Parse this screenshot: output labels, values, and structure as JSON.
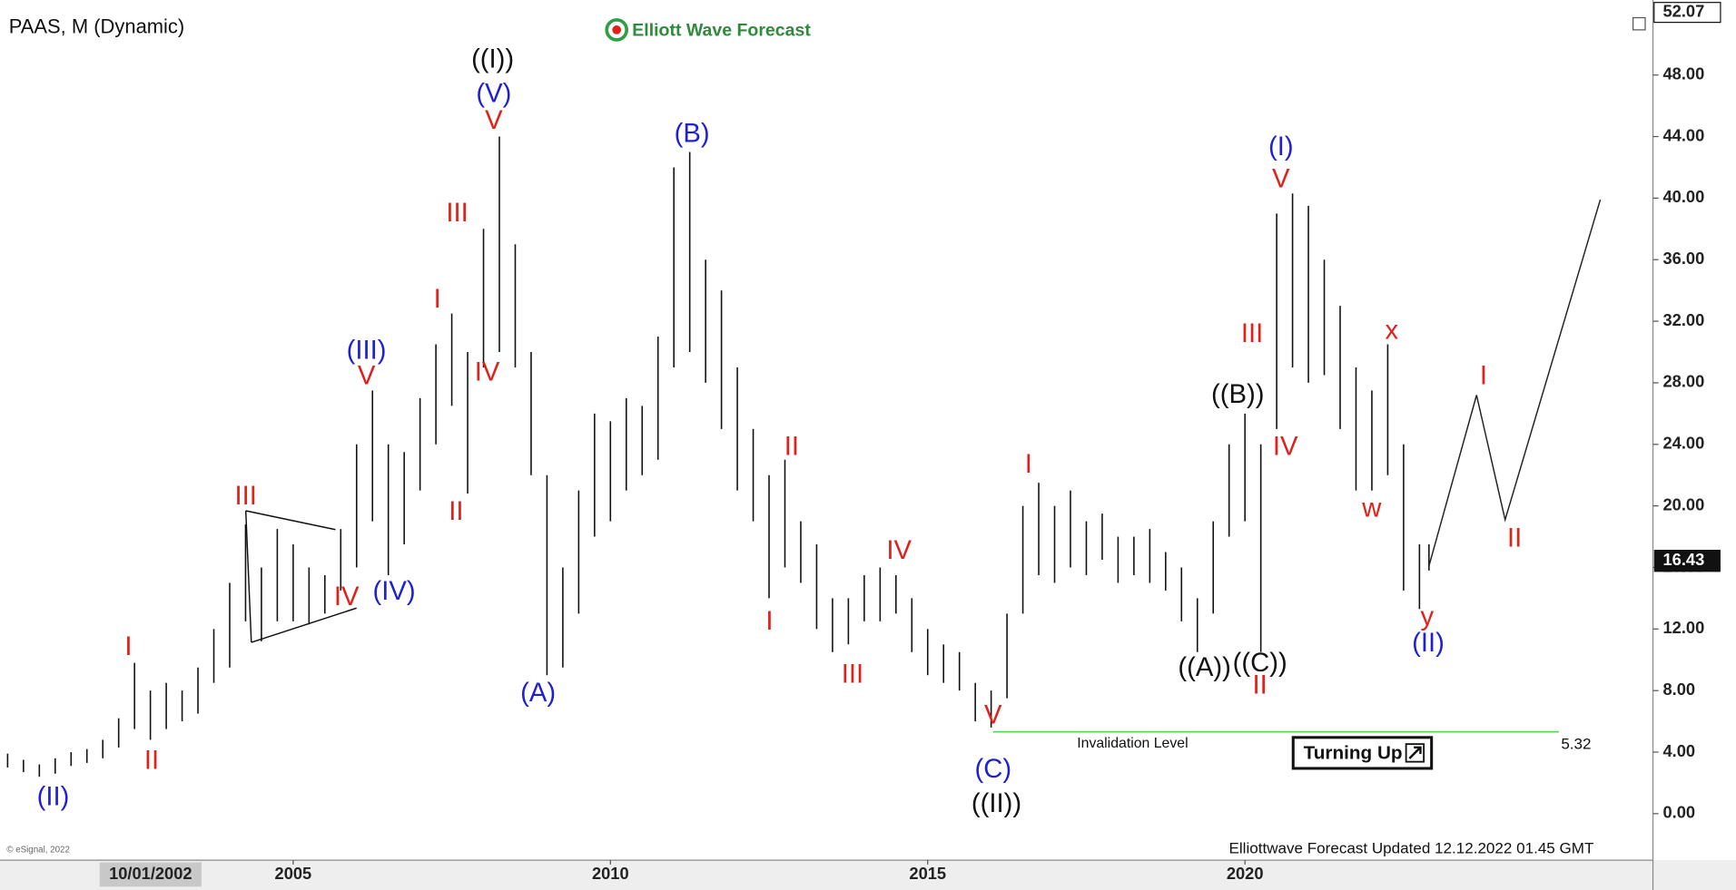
{
  "chart_data": {
    "type": "hilo",
    "title": "PAAS, M (Dynamic)",
    "logo": "Elliott Wave Forecast",
    "footer": "Elliottwave Forecast Updated 12.12.2022 01.45 GMT",
    "copyright": "© eSignal, 2022",
    "start_label": "10/01/2002",
    "badge": "Turning Up",
    "top_price": 52.07,
    "last_price": 16.43,
    "invalidation": {
      "label": "Invalidation Level",
      "value": 5.32
    },
    "color": "#111111",
    "x": [
      2000.5,
      2000.75,
      2001.0,
      2001.25,
      2001.5,
      2001.75,
      2002.0,
      2002.25,
      2002.5,
      2002.75,
      2003.0,
      2003.25,
      2003.5,
      2003.75,
      2004.0,
      2004.25,
      2004.5,
      2004.75,
      2005.0,
      2005.25,
      2005.5,
      2005.75,
      2006.0,
      2006.25,
      2006.5,
      2006.75,
      2007.0,
      2007.25,
      2007.5,
      2007.75,
      2008.0,
      2008.25,
      2008.5,
      2008.75,
      2009.0,
      2009.25,
      2009.5,
      2009.75,
      2010.0,
      2010.25,
      2010.5,
      2010.75,
      2011.0,
      2011.25,
      2011.5,
      2011.75,
      2012.0,
      2012.25,
      2012.5,
      2012.75,
      2013.0,
      2013.25,
      2013.5,
      2013.75,
      2014.0,
      2014.25,
      2014.5,
      2014.75,
      2015.0,
      2015.25,
      2015.5,
      2015.75,
      2016.0,
      2016.25,
      2016.5,
      2016.75,
      2017.0,
      2017.25,
      2017.5,
      2017.75,
      2018.0,
      2018.25,
      2018.5,
      2018.75,
      2019.0,
      2019.25,
      2019.5,
      2019.75,
      2020.0,
      2020.25,
      2020.5,
      2020.75,
      2021.0,
      2021.25,
      2021.5,
      2021.75,
      2022.0,
      2022.25,
      2022.5,
      2022.75,
      2022.9
    ],
    "high": [
      3.9,
      3.5,
      3.2,
      3.6,
      4.0,
      4.2,
      4.8,
      6.2,
      9.8,
      8.0,
      8.5,
      8.0,
      9.5,
      12.0,
      15.0,
      18.8,
      16.0,
      18.5,
      17.5,
      16.0,
      15.5,
      18.5,
      24.0,
      27.5,
      24.0,
      23.5,
      27.0,
      30.5,
      32.5,
      30.0,
      38.0,
      44.0,
      37.0,
      30.0,
      22.0,
      16.0,
      21.0,
      26.0,
      25.5,
      27.0,
      26.5,
      31.0,
      42.0,
      43.0,
      36.0,
      34.0,
      29.0,
      25.0,
      22.0,
      23.0,
      19.0,
      17.5,
      14.0,
      14.0,
      15.5,
      16.0,
      15.5,
      14.0,
      12.0,
      11.0,
      10.5,
      8.5,
      8.0,
      13.0,
      20.0,
      21.5,
      20.0,
      21.0,
      19.0,
      19.5,
      18.0,
      18.0,
      18.5,
      17.0,
      16.0,
      14.0,
      19.0,
      24.0,
      26.0,
      24.0,
      39.0,
      40.3,
      39.5,
      36.0,
      33.0,
      29.0,
      27.5,
      30.5,
      24.0,
      17.5,
      17.5
    ],
    "low": [
      3.0,
      2.7,
      2.4,
      2.6,
      3.1,
      3.3,
      3.6,
      4.3,
      5.5,
      4.8,
      5.5,
      6.0,
      6.5,
      8.5,
      9.5,
      12.5,
      11.2,
      12.5,
      12.5,
      12.3,
      13.0,
      14.5,
      16.0,
      19.0,
      15.5,
      17.5,
      21.0,
      24.0,
      26.5,
      20.8,
      29.0,
      30.0,
      29.0,
      22.0,
      9.0,
      9.5,
      13.0,
      18.0,
      19.0,
      21.0,
      22.0,
      23.0,
      29.0,
      30.0,
      28.0,
      25.0,
      21.0,
      19.0,
      14.0,
      16.0,
      15.0,
      12.0,
      10.5,
      11.0,
      12.5,
      12.5,
      13.0,
      10.5,
      9.0,
      8.5,
      8.0,
      6.0,
      5.6,
      7.5,
      13.0,
      15.5,
      15.0,
      16.0,
      15.5,
      16.5,
      15.0,
      15.5,
      15.0,
      14.5,
      12.5,
      10.5,
      13.0,
      18.0,
      19.0,
      10.5,
      25.0,
      29.0,
      28.0,
      28.5,
      25.0,
      21.0,
      21.0,
      22.0,
      14.5,
      13.3,
      15.8
    ],
    "projection": {
      "x": [
        2022.9,
        2023.65,
        2024.1,
        2025.6
      ],
      "y": [
        16.1,
        27.2,
        19.1,
        39.9
      ]
    },
    "xlim": [
      2000.38,
      2026.43
    ],
    "xticks": [
      2005,
      2010,
      2015,
      2020
    ],
    "ylim": [
      -3.02,
      52.3
    ],
    "yticks": [
      {
        "value": 0,
        "label": "0.00"
      },
      {
        "value": 4,
        "label": "4.00"
      },
      {
        "value": 8,
        "label": "8.00"
      },
      {
        "value": 12,
        "label": "12.00"
      },
      {
        "value": 16,
        "label": "16.00"
      },
      {
        "value": 20,
        "label": "20.00"
      },
      {
        "value": 24,
        "label": "24.00"
      },
      {
        "value": 28,
        "label": "28.00"
      },
      {
        "value": 32,
        "label": "32.00"
      },
      {
        "value": 36,
        "label": "36.00"
      },
      {
        "value": 40,
        "label": "40.00"
      },
      {
        "value": 44,
        "label": "44.00"
      },
      {
        "value": 48,
        "label": "48.00"
      }
    ],
    "annotations": [
      {
        "text": "(II)",
        "color": "#1f1fd6"
      },
      {
        "text": "I",
        "color": "#e0201b"
      },
      {
        "text": "II",
        "color": "#e0201b"
      },
      {
        "text": "III",
        "color": "#e0201b"
      },
      {
        "text": "IV",
        "color": "#e0201b"
      },
      {
        "text": "(III)",
        "color": "#1f1fd6"
      },
      {
        "text": "V",
        "color": "#e0201b"
      },
      {
        "text": "(IV)",
        "color": "#1f1fd6"
      },
      {
        "text": "I",
        "color": "#e0201b"
      },
      {
        "text": "II",
        "color": "#e0201b"
      },
      {
        "text": "III",
        "color": "#e0201b"
      },
      {
        "text": "IV",
        "color": "#e0201b"
      },
      {
        "text": "((I))",
        "color": "#111111"
      },
      {
        "text": "(V)",
        "color": "#1f1fd6"
      },
      {
        "text": "V",
        "color": "#e0201b"
      },
      {
        "text": "(A)",
        "color": "#1f1fd6"
      },
      {
        "text": "(B)",
        "color": "#1f1fd6"
      },
      {
        "text": "I",
        "color": "#e0201b"
      },
      {
        "text": "II",
        "color": "#e0201b"
      },
      {
        "text": "III",
        "color": "#e0201b"
      },
      {
        "text": "IV",
        "color": "#e0201b"
      },
      {
        "text": "V",
        "color": "#e0201b"
      },
      {
        "text": "(C)",
        "color": "#1f1fd6"
      },
      {
        "text": "((II))",
        "color": "#111111"
      },
      {
        "text": "I",
        "color": "#e0201b"
      },
      {
        "text": "((A))",
        "color": "#111111"
      },
      {
        "text": "((B))",
        "color": "#111111"
      },
      {
        "text": "((C))",
        "color": "#111111"
      },
      {
        "text": "II",
        "color": "#e0201b"
      },
      {
        "text": "III",
        "color": "#e0201b"
      },
      {
        "text": "IV",
        "color": "#e0201b"
      },
      {
        "text": "(I)",
        "color": "#1f1fd6"
      },
      {
        "text": "V",
        "color": "#e0201b"
      },
      {
        "text": "w",
        "color": "#e0201b"
      },
      {
        "text": "x",
        "color": "#e0201b"
      },
      {
        "text": "y",
        "color": "#e0201b"
      },
      {
        "text": "(II)",
        "color": "#1f1fd6"
      },
      {
        "text": "I",
        "color": "#e0201b"
      },
      {
        "text": "II",
        "color": "#e0201b"
      }
    ]
  }
}
